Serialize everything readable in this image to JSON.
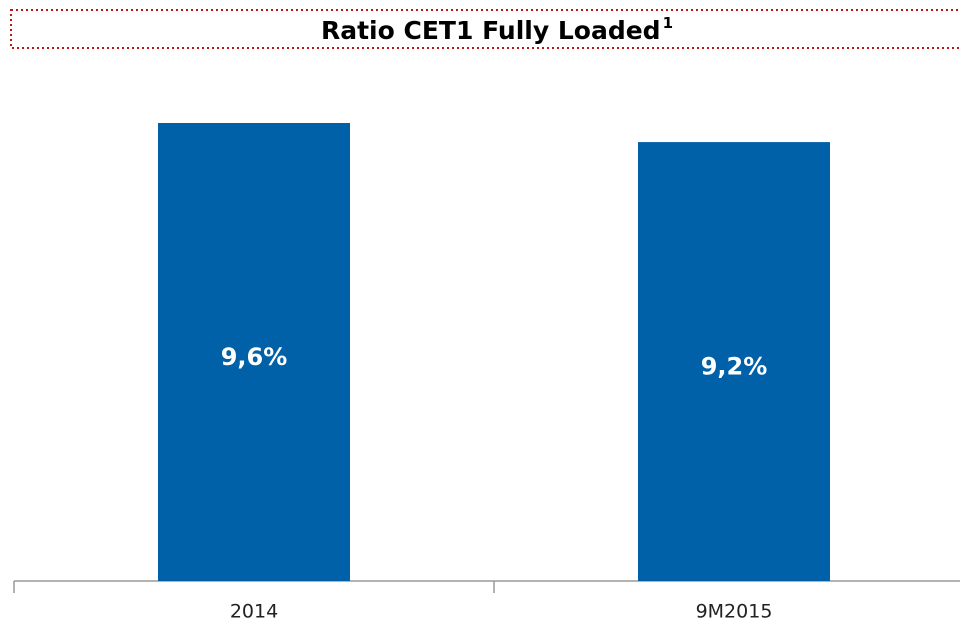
{
  "chart_data": {
    "type": "bar",
    "title": "Ratio CET1 Fully Loaded",
    "title_footnote": "1",
    "categories": [
      "2014",
      "9M2015"
    ],
    "values": [
      9.6,
      9.2
    ],
    "value_labels": [
      "9,6%",
      "9,2%"
    ],
    "color": "#0060a8",
    "ylim": [
      0,
      12
    ]
  }
}
